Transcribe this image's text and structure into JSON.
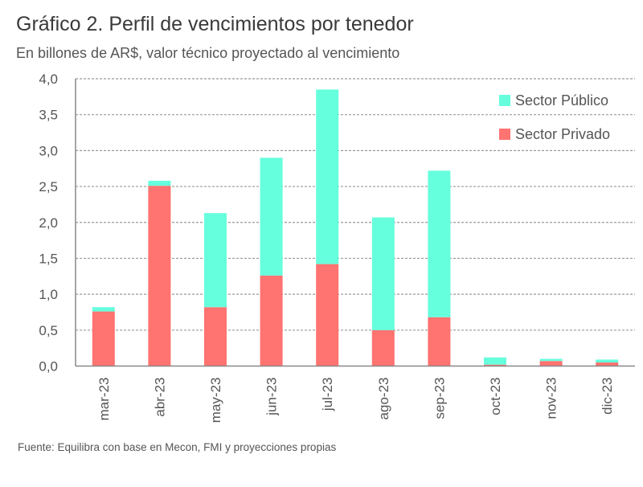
{
  "title": "Gráfico 2. Perfil de vencimientos por tenedor",
  "subtitle": "En billones de AR$, valor técnico proyectado al vencimiento",
  "source": "Fuente: Equilibra con base en Mecon, FMI y proyecciones propias",
  "chart_data": {
    "type": "bar",
    "stacked": true,
    "categories": [
      "mar-23",
      "abr-23",
      "may-23",
      "jun-23",
      "jul-23",
      "ago-23",
      "sep-23",
      "oct-23",
      "nov-23",
      "dic-23"
    ],
    "series": [
      {
        "name": "Sector Privado",
        "color": "#FF7370",
        "values": [
          0.76,
          2.51,
          0.82,
          1.26,
          1.42,
          0.5,
          0.68,
          0.02,
          0.07,
          0.05
        ]
      },
      {
        "name": "Sector Público",
        "color": "#66FFDD",
        "values": [
          0.06,
          0.07,
          1.31,
          1.64,
          2.43,
          1.57,
          2.04,
          0.1,
          0.03,
          0.04
        ]
      }
    ],
    "legend_order": [
      "Sector Público",
      "Sector Privado"
    ],
    "ylim": [
      0,
      4.0
    ],
    "yticks": [
      "0,0",
      "0,5",
      "1,0",
      "1,5",
      "2,0",
      "2,5",
      "3,0",
      "3,5",
      "4,0"
    ],
    "grid": true,
    "legend_position": "top-right"
  }
}
